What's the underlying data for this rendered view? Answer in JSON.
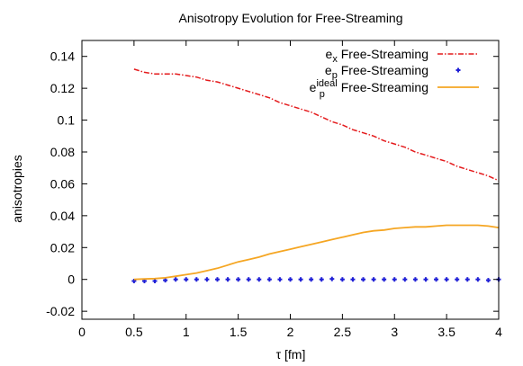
{
  "chart_data": {
    "type": "line",
    "title": "Anisotropy Evolution for Free-Streaming",
    "xlabel": "τ [fm]",
    "ylabel": "anisotropies",
    "xlim": [
      0,
      4
    ],
    "ylim": [
      -0.025,
      0.15
    ],
    "xticks": [
      0,
      0.5,
      1,
      1.5,
      2,
      2.5,
      3,
      3.5,
      4
    ],
    "xtick_labels": [
      "0",
      "0.5",
      "1",
      "1.5",
      "2",
      "2.5",
      "3",
      "3.5",
      "4"
    ],
    "yticks": [
      -0.02,
      0,
      0.02,
      0.04,
      0.06,
      0.08,
      0.1,
      0.12,
      0.14
    ],
    "ytick_labels": [
      "-0.02",
      "0",
      "0.02",
      "0.04",
      "0.06",
      "0.08",
      "0.1",
      "0.12",
      "0.14"
    ],
    "legend_position": "top-right",
    "grid": false,
    "series": [
      {
        "name": "e_x Free-Streaming",
        "legend_main": "e",
        "legend_sub": "x",
        "legend_sup": "",
        "legend_suffix": " Free-Streaming",
        "style": "dash-dot",
        "color": "#e41a1c",
        "x": [
          0.5,
          0.6,
          0.7,
          0.8,
          0.9,
          1.0,
          1.1,
          1.2,
          1.3,
          1.4,
          1.5,
          1.6,
          1.7,
          1.8,
          1.9,
          2.0,
          2.1,
          2.2,
          2.3,
          2.4,
          2.5,
          2.6,
          2.7,
          2.8,
          2.9,
          3.0,
          3.1,
          3.2,
          3.3,
          3.4,
          3.5,
          3.6,
          3.7,
          3.8,
          3.9,
          4.0
        ],
        "y": [
          0.132,
          0.13,
          0.129,
          0.129,
          0.129,
          0.128,
          0.127,
          0.125,
          0.124,
          0.122,
          0.12,
          0.118,
          0.116,
          0.114,
          0.111,
          0.109,
          0.107,
          0.105,
          0.102,
          0.099,
          0.097,
          0.094,
          0.092,
          0.09,
          0.087,
          0.085,
          0.083,
          0.08,
          0.078,
          0.076,
          0.074,
          0.071,
          0.069,
          0.067,
          0.065,
          0.062
        ]
      },
      {
        "name": "e_p Free-Streaming",
        "legend_main": "e",
        "legend_sub": "p",
        "legend_sup": "",
        "legend_suffix": " Free-Streaming",
        "style": "points",
        "color": "#1f1fd6",
        "x": [
          0.5,
          0.6,
          0.7,
          0.8,
          0.9,
          1.0,
          1.1,
          1.2,
          1.3,
          1.4,
          1.5,
          1.6,
          1.7,
          1.8,
          1.9,
          2.0,
          2.1,
          2.2,
          2.3,
          2.4,
          2.5,
          2.6,
          2.7,
          2.8,
          2.9,
          3.0,
          3.1,
          3.2,
          3.3,
          3.4,
          3.5,
          3.6,
          3.7,
          3.8,
          3.9,
          4.0
        ],
        "y": [
          -0.001,
          -0.001,
          -0.001,
          -0.0005,
          0.0,
          0.0,
          0.0,
          0.0,
          0.0,
          0.0,
          0.0,
          0.0,
          0.0,
          0.0,
          0.0,
          0.0,
          0.0,
          0.0,
          0.0,
          0.0003,
          0.0,
          0.0,
          0.0,
          0.0,
          0.0,
          0.0,
          0.0,
          0.0,
          0.0,
          0.0,
          0.0,
          0.0,
          0.0,
          0.0,
          -0.0005,
          0.0
        ]
      },
      {
        "name": "e_p^ideal Free-Streaming",
        "legend_main": "e",
        "legend_sub": "p",
        "legend_sup": "ideal",
        "legend_suffix": " Free-Streaming",
        "style": "solid",
        "color": "#f5a623",
        "x": [
          0.5,
          0.6,
          0.7,
          0.8,
          0.9,
          1.0,
          1.1,
          1.2,
          1.3,
          1.4,
          1.5,
          1.6,
          1.7,
          1.8,
          1.9,
          2.0,
          2.1,
          2.2,
          2.3,
          2.4,
          2.5,
          2.6,
          2.7,
          2.8,
          2.9,
          3.0,
          3.1,
          3.2,
          3.3,
          3.4,
          3.5,
          3.6,
          3.7,
          3.8,
          3.9,
          4.0
        ],
        "y": [
          0.0,
          0.0003,
          0.0005,
          0.001,
          0.002,
          0.003,
          0.004,
          0.0055,
          0.007,
          0.009,
          0.011,
          0.0125,
          0.014,
          0.016,
          0.0175,
          0.019,
          0.0205,
          0.022,
          0.0235,
          0.025,
          0.0265,
          0.028,
          0.0295,
          0.0305,
          0.031,
          0.032,
          0.0325,
          0.033,
          0.033,
          0.0335,
          0.034,
          0.034,
          0.034,
          0.034,
          0.0335,
          0.0325
        ]
      }
    ]
  }
}
